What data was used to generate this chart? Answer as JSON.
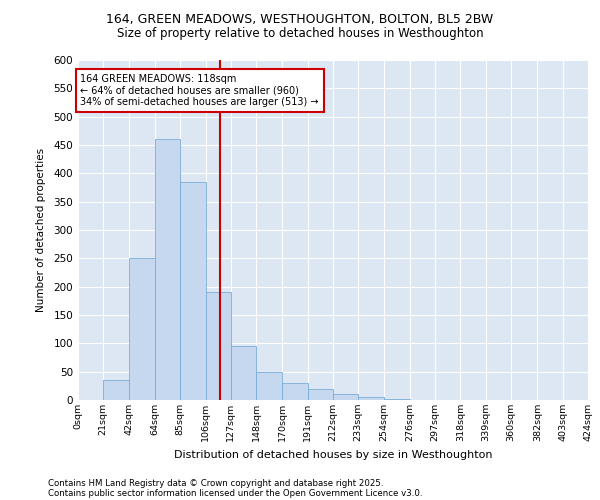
{
  "title_line1": "164, GREEN MEADOWS, WESTHOUGHTON, BOLTON, BL5 2BW",
  "title_line2": "Size of property relative to detached houses in Westhoughton",
  "xlabel": "Distribution of detached houses by size in Westhoughton",
  "ylabel": "Number of detached properties",
  "footer_line1": "Contains HM Land Registry data © Crown copyright and database right 2025.",
  "footer_line2": "Contains public sector information licensed under the Open Government Licence v3.0.",
  "annotation_line1": "164 GREEN MEADOWS: 118sqm",
  "annotation_line2": "← 64% of detached houses are smaller (960)",
  "annotation_line3": "34% of semi-detached houses are larger (513) →",
  "subject_size": 118,
  "bin_edges": [
    0,
    21,
    42,
    64,
    85,
    106,
    127,
    148,
    170,
    191,
    212,
    233,
    254,
    276,
    297,
    318,
    339,
    360,
    382,
    403,
    424
  ],
  "bar_heights": [
    0,
    35,
    250,
    460,
    385,
    190,
    95,
    50,
    30,
    20,
    10,
    5,
    2,
    0,
    0,
    0,
    0,
    0,
    0,
    0
  ],
  "bar_color": "#c5d8ef",
  "bar_edge_color": "#7aadd4",
  "vline_color": "#cc0000",
  "plot_bg_color": "#dce7f3",
  "fig_bg_color": "#ffffff",
  "grid_color": "#ffffff",
  "annotation_box_edge": "#cc0000",
  "annotation_box_face": "#ffffff",
  "ylim": [
    0,
    600
  ],
  "yticks": [
    0,
    50,
    100,
    150,
    200,
    250,
    300,
    350,
    400,
    450,
    500,
    550,
    600
  ]
}
